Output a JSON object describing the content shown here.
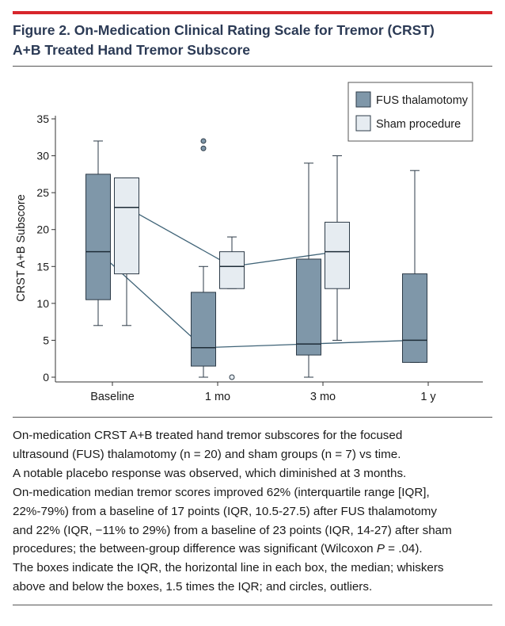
{
  "figure": {
    "title_line1": "Figure 2. On-Medication Clinical Rating Scale for Tremor (CRST)",
    "title_line2": "A+B Treated Hand Tremor Subscore"
  },
  "colors": {
    "accent_rule": "#d7262c",
    "title": "#2b3a55",
    "fus_fill": "#7f97a9",
    "sham_fill": "#e6ecf1",
    "stroke": "#2d3b48",
    "median_line": "#3f6377"
  },
  "chart_data": {
    "type": "box",
    "title": "On-Medication Clinical Rating Scale for Tremor (CRST) A+B Treated Hand Tremor Subscore",
    "ylabel": "CRST A+B Subscore",
    "xlabel": "",
    "ylim": [
      0,
      35
    ],
    "yticks": [
      0,
      5,
      10,
      15,
      20,
      25,
      30,
      35
    ],
    "categories": [
      "Baseline",
      "1 mo",
      "3 mo",
      "1 y"
    ],
    "legend_position": "top-right",
    "series": [
      {
        "name": "FUS thalamotomy",
        "key": "fus",
        "boxes": [
          {
            "category": "Baseline",
            "min": 7,
            "q1": 10.5,
            "median": 17,
            "q3": 27.5,
            "max": 32,
            "outliers": []
          },
          {
            "category": "1 mo",
            "min": 0,
            "q1": 1.5,
            "median": 4,
            "q3": 11.5,
            "max": 15,
            "outliers": [
              31,
              32
            ]
          },
          {
            "category": "3 mo",
            "min": 0,
            "q1": 3,
            "median": 4.5,
            "q3": 16,
            "max": 29,
            "outliers": []
          },
          {
            "category": "1 y",
            "min": 2,
            "q1": 2,
            "median": 5,
            "q3": 14,
            "max": 28,
            "outliers": []
          }
        ]
      },
      {
        "name": "Sham procedure",
        "key": "sham",
        "boxes": [
          {
            "category": "Baseline",
            "min": 7,
            "q1": 14,
            "median": 23,
            "q3": 27,
            "max": 27,
            "outliers": []
          },
          {
            "category": "1 mo",
            "min": 12,
            "q1": 12,
            "median": 15,
            "q3": 17,
            "max": 19,
            "outliers": [
              0
            ]
          },
          {
            "category": "3 mo",
            "min": 5,
            "q1": 12,
            "median": 17,
            "q3": 21,
            "max": 30,
            "outliers": []
          }
        ]
      }
    ]
  },
  "caption": {
    "l1": "On-medication CRST A+B treated hand tremor subscores for the focused",
    "l2": "ultrasound (FUS) thalamotomy (n = 20) and sham groups (n = 7) vs time.",
    "l3": "A notable placebo response was observed, which diminished at 3 months.",
    "l4": "On-medication median tremor scores improved 62% (interquartile range [IQR],",
    "l5": "22%-79%) from a baseline of 17 points (IQR, 10.5-27.5) after FUS thalamotomy",
    "l6": "and 22% (IQR, −11% to 29%) from a baseline of 23 points (IQR, 14-27) after sham",
    "l7a": "procedures; the between-group difference was significant (Wilcoxon ",
    "l7b": "P",
    "l7c": " = .04).",
    "l8": "The boxes indicate the IQR, the horizontal line in each box, the median; whiskers",
    "l9": "above and below the boxes, 1.5 times the IQR; and circles, outliers."
  }
}
